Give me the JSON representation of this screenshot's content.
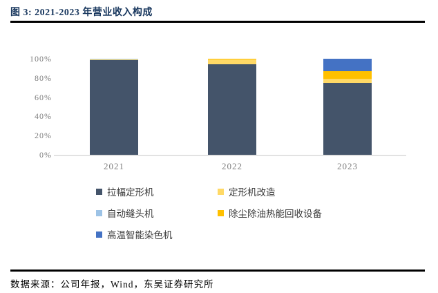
{
  "figure": {
    "title": "图 3: 2021-2023 年营业收入构成",
    "source": "数据来源：公司年报，Wind，东吴证券研究所"
  },
  "chart_data": {
    "type": "bar",
    "stacked": true,
    "title": "2021-2023 年营业收入构成",
    "categories": [
      "2021",
      "2022",
      "2023"
    ],
    "series": [
      {
        "name": "拉幅定形机",
        "color": "#44546A",
        "values": [
          98.5,
          94,
          75
        ]
      },
      {
        "name": "定形机改造",
        "color": "#FFD966",
        "values": [
          1,
          5,
          4
        ]
      },
      {
        "name": "自动缝头机",
        "color": "#9DC3E6",
        "values": [
          0.5,
          0,
          0
        ]
      },
      {
        "name": "除尘除油热能回收设备",
        "color": "#FFC000",
        "values": [
          0,
          1,
          8
        ]
      },
      {
        "name": "高温智能染色机",
        "color": "#4472C4",
        "values": [
          0,
          0,
          13
        ]
      }
    ],
    "unit": "%",
    "ylim": [
      0,
      100
    ],
    "ylabel_ticks": [
      "0%",
      "20%",
      "40%",
      "60%",
      "80%",
      "100%"
    ],
    "grid": false,
    "legend_position": "bottom"
  },
  "colors": {
    "title_text": "#17365D",
    "axis_text": "#7F7F7F",
    "baseline": "#E2E2E2",
    "rule": "#000000"
  }
}
